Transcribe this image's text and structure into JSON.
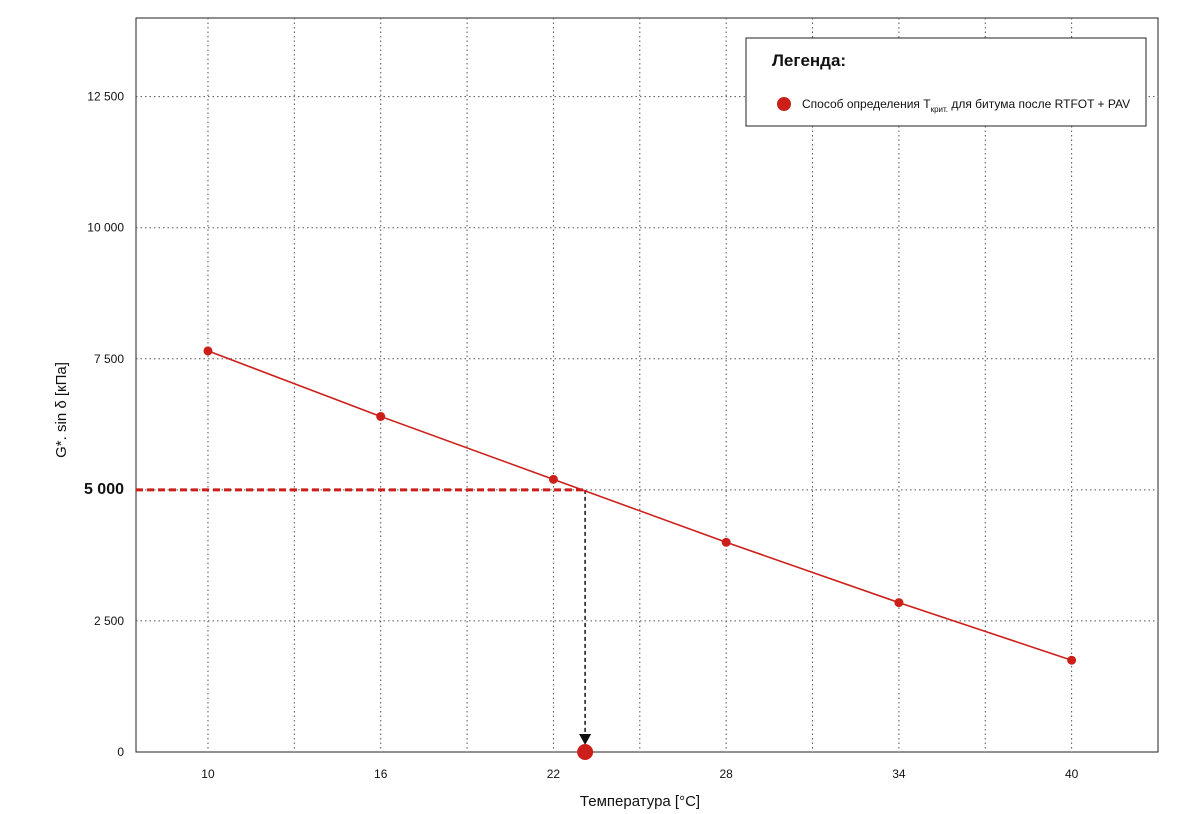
{
  "chart_data": {
    "type": "line",
    "x_label": "Температура [°C]",
    "y_label": "G*. sin δ [кПа]",
    "xlim": [
      7.5,
      43
    ],
    "ylim": [
      0,
      14000
    ],
    "x_ticks": [
      "10",
      "16",
      "22",
      "28",
      "34",
      "40"
    ],
    "x_tick_values": [
      10,
      16,
      22,
      28,
      34,
      40
    ],
    "x_minor_grid": [
      13,
      19,
      25,
      31,
      37
    ],
    "y_ticks": [
      "0",
      "2 500",
      "5 000",
      "7 500",
      "10 000",
      "12 500"
    ],
    "y_tick_values": [
      0,
      2500,
      5000,
      7500,
      10000,
      12500
    ],
    "grid": true,
    "series": [
      {
        "name": "Способ определения Tкрит. для битума после RTFOT + PAV",
        "color": "#cc1f1a",
        "x": [
          10,
          16,
          22,
          28,
          34,
          40
        ],
        "y": [
          7650,
          6400,
          5200,
          4000,
          2850,
          1750
        ]
      }
    ],
    "reference": {
      "y_value": 5000,
      "y_label": "5 000",
      "critical_temperature": 23.1,
      "color": "#cc1f1a"
    },
    "legend": {
      "title": "Легенда:",
      "position": "top-right",
      "label_main": "Способ определения T",
      "label_sub": "крит.",
      "label_rest": " для битума после RTFOT + PAV"
    }
  }
}
